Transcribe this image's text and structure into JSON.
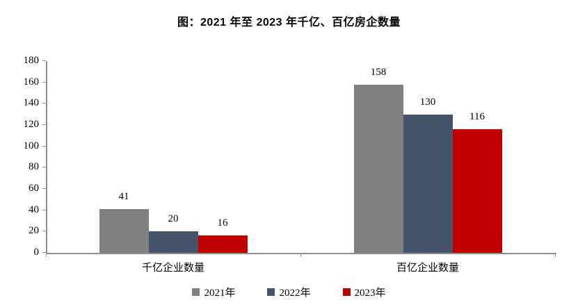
{
  "chart_data": {
    "type": "bar",
    "title": "图：2021 年至 2023 年千亿、百亿房企数量",
    "categories": [
      "千亿企业数量",
      "百亿企业数量"
    ],
    "series": [
      {
        "name": "2021年",
        "color": "#808080",
        "values": [
          41,
          158
        ]
      },
      {
        "name": "2022年",
        "color": "#44546A",
        "values": [
          20,
          130
        ]
      },
      {
        "name": "2023年",
        "color": "#C00000",
        "values": [
          16,
          116
        ]
      }
    ],
    "ylim": [
      0,
      180
    ],
    "yticks": [
      0,
      20,
      40,
      60,
      80,
      100,
      120,
      140,
      160,
      180
    ],
    "grid": false,
    "data_labels": true,
    "legend_position": "bottom",
    "axis_color": "#8f8f8f",
    "text_color": "#000000",
    "background_color": "#ffffff"
  }
}
